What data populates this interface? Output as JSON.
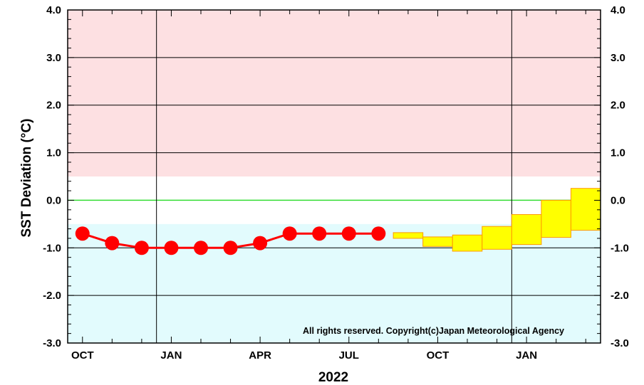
{
  "chart_data": {
    "type": "line",
    "ylabel": "SST Deviation (°C)",
    "xlabel": "2022",
    "copyright": "All rights reserved. Copyright(c)Japan Meteorological Agency",
    "ylim": [
      -3.0,
      4.0
    ],
    "y_ticks": [
      "4.0",
      "3.0",
      "2.0",
      "1.0",
      "0.0",
      "-1.0",
      "-2.0",
      "-3.0"
    ],
    "x_tick_labels": [
      {
        "month": 0,
        "label": "OCT"
      },
      {
        "month": 3,
        "label": "JAN"
      },
      {
        "month": 6,
        "label": "APR"
      },
      {
        "month": 9,
        "label": "JUL"
      },
      {
        "month": 12,
        "label": "OCT"
      },
      {
        "month": 15,
        "label": "JAN"
      }
    ],
    "x_range_months": [
      -0.5,
      17.5
    ],
    "year_boundaries": [
      2.5,
      14.5
    ],
    "warm_band": [
      0.5,
      4.0
    ],
    "cold_band": [
      -3.0,
      -0.5
    ],
    "colors": {
      "warm_band": "#fde0e2",
      "cold_band": "#e2fbfd",
      "zero_line": "#33dd33",
      "observed": "#ff0000",
      "forecast_fill": "#ffff00",
      "forecast_edge": "#ff9900"
    },
    "series": [
      {
        "kind": "observed",
        "points": [
          {
            "month": 0,
            "value": -0.7
          },
          {
            "month": 1,
            "value": -0.9
          },
          {
            "month": 2,
            "value": -1.0
          },
          {
            "month": 3,
            "value": -1.0
          },
          {
            "month": 4,
            "value": -1.0
          },
          {
            "month": 5,
            "value": -1.0
          },
          {
            "month": 6,
            "value": -0.9
          },
          {
            "month": 7,
            "value": -0.7
          },
          {
            "month": 8,
            "value": -0.7
          },
          {
            "month": 9,
            "value": -0.7
          },
          {
            "month": 10,
            "value": -0.7
          }
        ]
      },
      {
        "kind": "forecast_range",
        "boxes": [
          {
            "month": 11,
            "low": -0.8,
            "high": -0.68
          },
          {
            "month": 12,
            "low": -0.97,
            "high": -0.77
          },
          {
            "month": 13,
            "low": -1.07,
            "high": -0.73
          },
          {
            "month": 14,
            "low": -1.03,
            "high": -0.55
          },
          {
            "month": 15,
            "low": -0.93,
            "high": -0.3
          },
          {
            "month": 16,
            "low": -0.78,
            "high": 0.0
          },
          {
            "month": 17,
            "low": -0.63,
            "high": 0.25
          }
        ]
      }
    ]
  }
}
